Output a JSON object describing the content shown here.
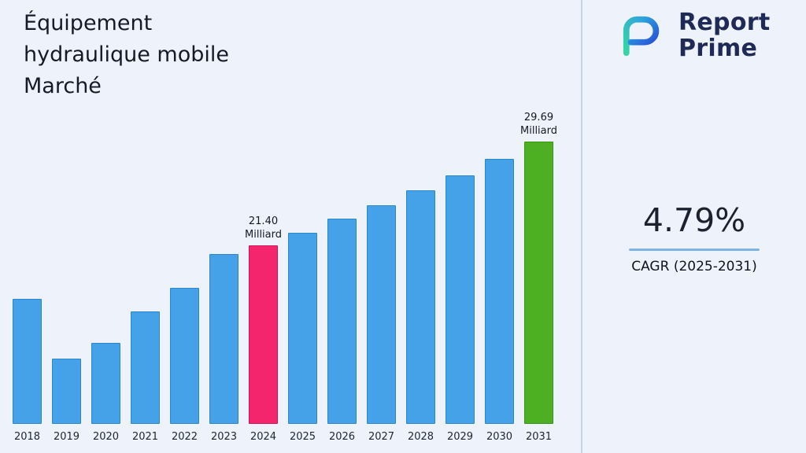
{
  "colors": {
    "background": "#eef3fb",
    "title_text": "#151a26",
    "navy": "#1f2a56",
    "underline_blue": "#7fb3e8",
    "divider": "#c3d3ea",
    "tick_text": "#1d2433"
  },
  "header": {
    "title_lines": [
      "Équipement",
      "hydraulique mobile",
      "Marché"
    ]
  },
  "logo": {
    "line1": "Report",
    "line2": "Prime"
  },
  "cagr": {
    "value": "4.79%",
    "label": "CAGR (2025-2031)"
  },
  "chart_data": {
    "type": "bar",
    "title": "Équipement hydraulique mobile Marché",
    "unit": "Milliard",
    "categories": [
      "2018",
      "2019",
      "2020",
      "2021",
      "2022",
      "2023",
      "2024",
      "2025",
      "2026",
      "2027",
      "2028",
      "2029",
      "2030",
      "2031"
    ],
    "values": [
      17.1,
      12.3,
      13.6,
      16.1,
      18.0,
      20.7,
      21.4,
      22.4,
      23.5,
      24.6,
      25.8,
      27.0,
      28.3,
      29.69
    ],
    "ylim": [
      7.1,
      31
    ],
    "grid": false,
    "legend_position": "none",
    "bar_color": "#45a1e8",
    "bar_border": "#2d86c9",
    "highlight_colors": {
      "2024": "#f5256d",
      "2031": "#4cb022"
    },
    "highlight_borders": {
      "2024": "#cf1457",
      "2031": "#3a9415"
    },
    "annotations": [
      {
        "category": "2024",
        "lines": [
          "21.40",
          "Milliard"
        ]
      },
      {
        "category": "2031",
        "lines": [
          "29.69",
          "Milliard"
        ]
      }
    ]
  }
}
